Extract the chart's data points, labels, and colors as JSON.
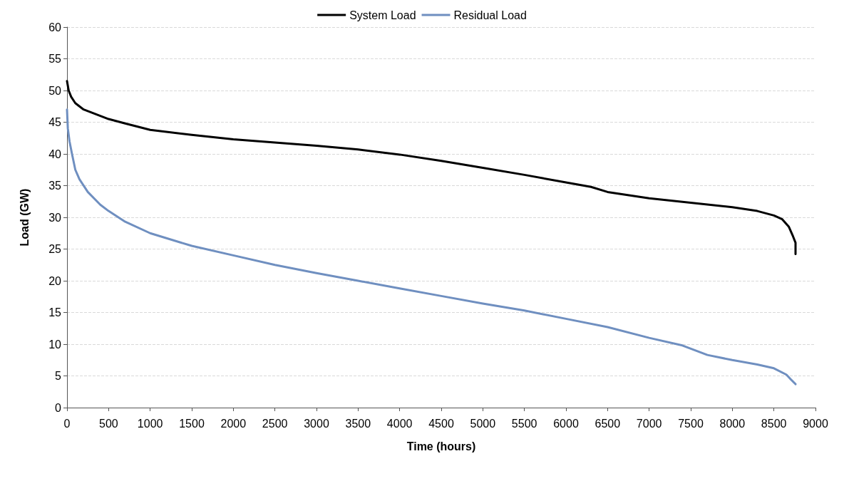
{
  "chart_data": {
    "type": "line",
    "xlabel": "Time (hours)",
    "ylabel": "Load (GW)",
    "xlim": [
      0,
      9000
    ],
    "xticks": [
      0,
      500,
      1000,
      1500,
      2000,
      2500,
      3000,
      3500,
      4000,
      4500,
      5000,
      5500,
      6000,
      6500,
      7000,
      7500,
      8000,
      8500,
      9000
    ],
    "ylim": [
      0,
      60
    ],
    "yticks": [
      0,
      5,
      10,
      15,
      20,
      25,
      30,
      35,
      40,
      45,
      50,
      55,
      60
    ],
    "grid": "y",
    "legend": "top",
    "marker": "none",
    "line_style": "solid",
    "series": [
      {
        "name": "System Load",
        "color": "#000000",
        "x": [
          0,
          20,
          50,
          100,
          200,
          300,
          500,
          700,
          1000,
          1500,
          2000,
          2500,
          3000,
          3500,
          4000,
          4500,
          5000,
          5500,
          6000,
          6300,
          6500,
          7000,
          7500,
          8000,
          8300,
          8500,
          8600,
          8680,
          8730,
          8760,
          8760
        ],
        "values": [
          51.5,
          50,
          49,
          48,
          47,
          46.5,
          45.5,
          44.8,
          43.8,
          43,
          42.3,
          41.8,
          41.3,
          40.7,
          39.9,
          38.9,
          37.8,
          36.7,
          35.5,
          34.8,
          34,
          33,
          32.3,
          31.6,
          31,
          30.3,
          29.7,
          28.5,
          27,
          26,
          24.2
        ]
      },
      {
        "name": "Residual Load",
        "color": "#6f8fc0",
        "x": [
          0,
          10,
          30,
          60,
          100,
          150,
          250,
          400,
          500,
          700,
          1000,
          1500,
          2000,
          2500,
          3000,
          3500,
          4000,
          4500,
          5000,
          5500,
          6000,
          6500,
          7000,
          7400,
          7700,
          8000,
          8300,
          8500,
          8650,
          8700,
          8760
        ],
        "values": [
          47,
          44,
          42,
          40,
          37.5,
          36,
          34,
          32,
          31,
          29.3,
          27.5,
          25.5,
          24,
          22.5,
          21.2,
          20,
          18.8,
          17.6,
          16.4,
          15.3,
          14,
          12.7,
          11,
          9.8,
          8.3,
          7.5,
          6.8,
          6.2,
          5.2,
          4.5,
          3.7
        ]
      }
    ]
  }
}
